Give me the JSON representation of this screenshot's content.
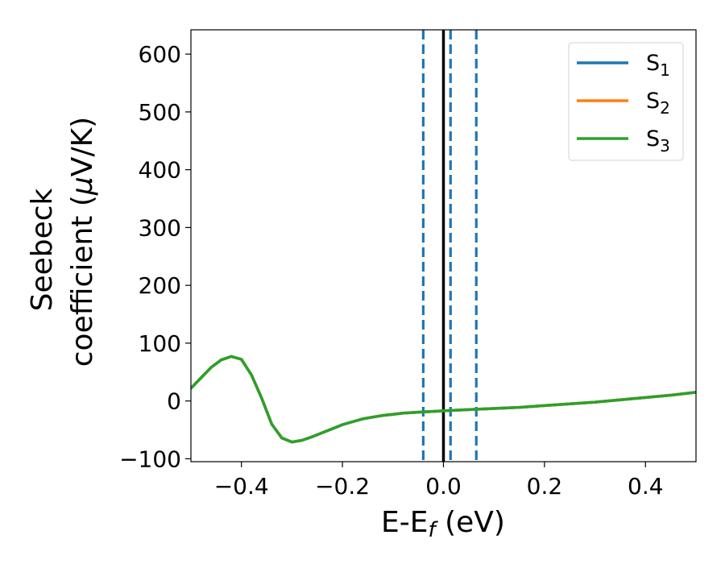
{
  "chart_data": {
    "type": "line",
    "title": "",
    "xlabel": "E-E",
    "xlabel_sub": "f",
    "xlabel_unit": " (eV)",
    "ylabel_line1": "Seebeck",
    "ylabel_line2_pre": "coefficient  (",
    "ylabel_mu": "μ",
    "ylabel_line2_post": "V/K)",
    "xlim": [
      -0.5,
      0.5
    ],
    "ylim": [
      -105,
      642
    ],
    "xticks": [
      -0.4,
      -0.2,
      0.0,
      0.2,
      0.4
    ],
    "xtick_labels": [
      "−0.4",
      "−0.2",
      "0.0",
      "0.2",
      "0.4"
    ],
    "yticks": [
      -100,
      0,
      100,
      200,
      300,
      400,
      500,
      600
    ],
    "ytick_labels": [
      "−100",
      "0",
      "100",
      "200",
      "300",
      "400",
      "500",
      "600"
    ],
    "grid": false,
    "legend_position": "top-right",
    "vlines": [
      {
        "x": 0.0,
        "style": "solid",
        "color": "#000000"
      },
      {
        "x": -0.04,
        "style": "dashed",
        "color": "#1f77b4"
      },
      {
        "x": 0.014,
        "style": "dashed",
        "color": "#1f77b4"
      },
      {
        "x": 0.065,
        "style": "dashed",
        "color": "#1f77b4"
      }
    ],
    "x": [
      -0.5,
      -0.48,
      -0.46,
      -0.44,
      -0.42,
      -0.4,
      -0.38,
      -0.36,
      -0.34,
      -0.32,
      -0.3,
      -0.28,
      -0.26,
      -0.24,
      -0.22,
      -0.2,
      -0.18,
      -0.16,
      -0.14,
      -0.12,
      -0.1,
      -0.08,
      -0.06,
      -0.04,
      -0.02,
      0.0,
      0.05,
      0.1,
      0.15,
      0.2,
      0.25,
      0.3,
      0.35,
      0.4,
      0.45,
      0.5
    ],
    "series": [
      {
        "name": "S",
        "sub": "1",
        "color": "#1f77b4",
        "values": [
          22,
          40,
          58,
          71,
          77,
          72,
          45,
          5,
          -40,
          -64,
          -71,
          -68,
          -62,
          -55,
          -48,
          -41,
          -36,
          -31,
          -28,
          -25,
          -23,
          -21,
          -20,
          -19,
          -18,
          -17,
          -15,
          -13,
          -11,
          -8,
          -5,
          -2,
          2,
          6,
          10,
          15
        ]
      },
      {
        "name": "S",
        "sub": "2",
        "color": "#ff7f0e",
        "values": [
          22,
          40,
          58,
          71,
          77,
          72,
          45,
          5,
          -40,
          -64,
          -71,
          -68,
          -62,
          -55,
          -48,
          -41,
          -36,
          -31,
          -28,
          -25,
          -23,
          -21,
          -20,
          -19,
          -18,
          -17,
          -15,
          -13,
          -11,
          -8,
          -5,
          -2,
          2,
          6,
          10,
          15
        ]
      },
      {
        "name": "S",
        "sub": "3",
        "color": "#2ca02c",
        "values": [
          22,
          40,
          58,
          71,
          77,
          72,
          45,
          5,
          -40,
          -64,
          -71,
          -68,
          -62,
          -55,
          -48,
          -41,
          -36,
          -31,
          -28,
          -25,
          -23,
          -21,
          -20,
          -19,
          -18,
          -17,
          -15,
          -13,
          -11,
          -8,
          -5,
          -2,
          2,
          6,
          10,
          15
        ]
      }
    ]
  }
}
